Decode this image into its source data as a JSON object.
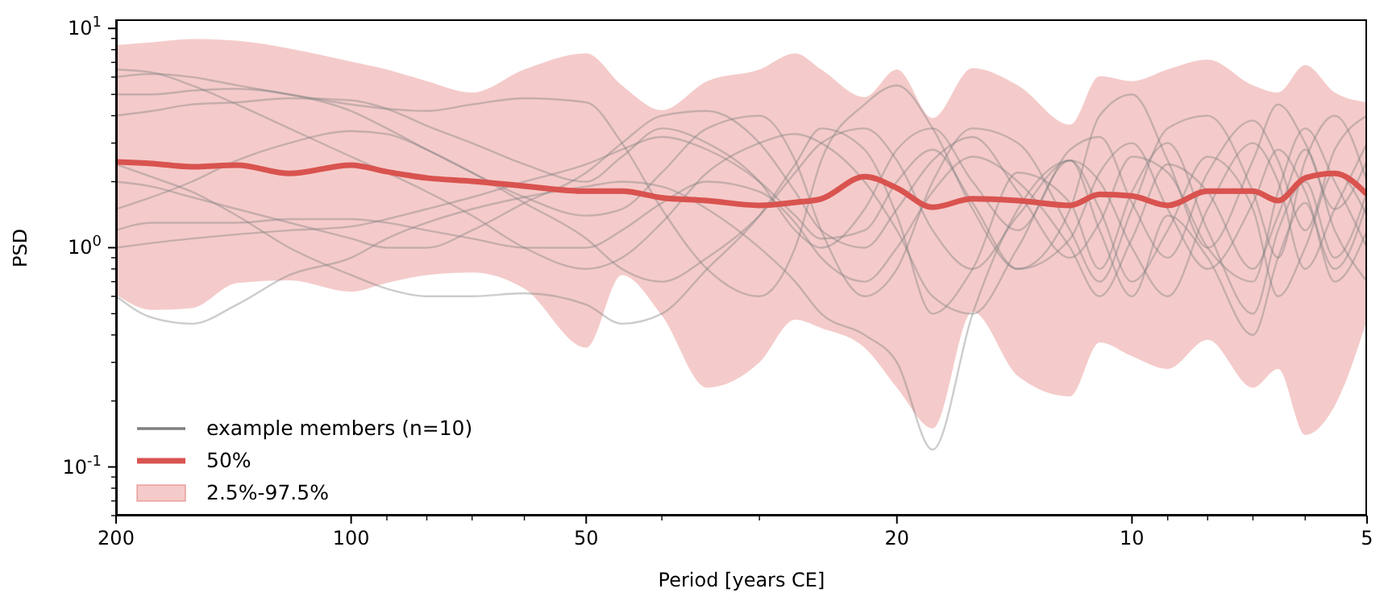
{
  "chart_data": {
    "type": "line",
    "xlabel": "Period [years CE]",
    "ylabel": "PSD",
    "log": "xy",
    "annotations": [
      "2.5%-97.5%"
    ],
    "legend": "bottom left",
    "marker": "none",
    "line_style": "solid",
    "xlim": [
      200,
      5
    ],
    "ylim": [
      0.06,
      11
    ],
    "xticks": [
      200,
      100,
      50,
      20,
      10,
      5,
      {
        "value": 90,
        "label": null
      },
      {
        "value": 80,
        "label": null
      },
      {
        "value": 70,
        "label": null
      },
      {
        "value": 60,
        "label": null
      },
      {
        "value": 40,
        "label": null
      },
      {
        "value": 30,
        "label": null
      },
      {
        "value": 9,
        "label": null
      },
      {
        "value": 8,
        "label": null
      },
      {
        "value": 7,
        "label": null
      },
      {
        "value": 6,
        "label": null
      }
    ],
    "yticks": [
      {
        "value": 0.1,
        "label": "10$^{-1}$"
      },
      {
        "value": 1,
        "label": "10$^{0}$"
      },
      {
        "value": 10,
        "label": "10$^{1}$"
      },
      {
        "value": 0.06,
        "label": null
      },
      {
        "value": 0.07,
        "label": null
      },
      {
        "value": 0.08,
        "label": null
      },
      {
        "value": 0.09,
        "label": null
      },
      {
        "value": 0.2,
        "label": null
      },
      {
        "value": 0.3,
        "label": null
      },
      {
        "value": 0.4,
        "label": null
      },
      {
        "value": 0.5,
        "label": null
      },
      {
        "value": 0.6,
        "label": null
      },
      {
        "value": 0.7,
        "label": null
      },
      {
        "value": 0.8,
        "label": null
      },
      {
        "value": 0.9,
        "label": null
      },
      {
        "value": 2,
        "label": null
      },
      {
        "value": 3,
        "label": null
      },
      {
        "value": 4,
        "label": null
      },
      {
        "value": 5,
        "label": null
      },
      {
        "value": 6,
        "label": null
      },
      {
        "value": 7,
        "label": null
      },
      {
        "value": 8,
        "label": null
      },
      {
        "value": 9,
        "label": null
      }
    ],
    "x": [
      200,
      180,
      160,
      140,
      120,
      100,
      90,
      80,
      70,
      60,
      50,
      45,
      40,
      35,
      30,
      27,
      25,
      22,
      20,
      18,
      16,
      14,
      12,
      11,
      10,
      9,
      8,
      7,
      6.5,
      6,
      5.5,
      5
    ],
    "series": [
      {
        "name": "example members (n=10)",
        "color": "#808080",
        "values": [
          6.5,
          6.3,
          5.5,
          4.5,
          3.5,
          2.6,
          2.2,
          1.8,
          1.4,
          1.0,
          0.8,
          0.9,
          1.3,
          2.2,
          3.0,
          3.3,
          3.0,
          2.0,
          1.2,
          0.6,
          0.5,
          1.0,
          2.5,
          2.0,
          1.0,
          0.6,
          1.5,
          3.0,
          2.0,
          0.8,
          1.5,
          3.0
        ]
      },
      {
        "color": "#808080",
        "values": [
          6.0,
          6.2,
          6.0,
          5.5,
          5.0,
          4.5,
          4.3,
          4.2,
          4.5,
          4.8,
          4.6,
          3.0,
          1.5,
          0.8,
          0.6,
          1.0,
          2.5,
          4.5,
          5.5,
          3.5,
          1.5,
          0.8,
          1.5,
          4.0,
          5.0,
          2.5,
          1.0,
          2.5,
          4.5,
          3.0,
          1.5,
          2.5
        ]
      },
      {
        "color": "#808080",
        "values": [
          5.0,
          5.0,
          5.2,
          5.3,
          5.0,
          4.2,
          3.5,
          2.8,
          2.2,
          1.7,
          1.4,
          1.5,
          2.2,
          3.5,
          4.0,
          2.5,
          1.2,
          0.6,
          0.8,
          2.0,
          3.5,
          3.0,
          1.2,
          0.7,
          1.5,
          3.5,
          4.0,
          1.8,
          0.9,
          2.5,
          4.0,
          2.0
        ]
      },
      {
        "color": "#808080",
        "values": [
          4.0,
          4.2,
          4.5,
          4.6,
          4.8,
          4.7,
          4.3,
          3.6,
          3.0,
          2.4,
          2.0,
          2.6,
          3.5,
          3.0,
          2.0,
          1.2,
          1.0,
          1.5,
          2.8,
          3.5,
          2.0,
          1.2,
          2.8,
          3.2,
          1.6,
          0.9,
          2.2,
          3.8,
          2.5,
          1.2,
          2.8,
          4.0
        ]
      },
      {
        "color": "#808080",
        "values": [
          2.0,
          1.9,
          1.7,
          1.5,
          1.3,
          1.1,
          1.0,
          1.0,
          1.2,
          1.6,
          2.2,
          3.0,
          4.0,
          4.2,
          3.0,
          1.8,
          1.2,
          1.0,
          1.5,
          2.5,
          3.2,
          1.8,
          0.9,
          1.3,
          2.6,
          2.2,
          1.0,
          0.7,
          1.8,
          3.5,
          2.0,
          1.0
        ]
      },
      {
        "color": "#808080",
        "values": [
          1.5,
          1.7,
          2.0,
          2.5,
          3.0,
          3.4,
          3.3,
          2.8,
          2.2,
          1.6,
          1.1,
          0.8,
          0.7,
          0.9,
          1.4,
          2.2,
          3.0,
          3.5,
          2.5,
          1.2,
          0.8,
          1.4,
          2.5,
          1.5,
          0.7,
          1.2,
          2.6,
          1.5,
          0.6,
          1.0,
          2.2,
          1.4
        ]
      },
      {
        "color": "#808080",
        "values": [
          1.2,
          1.3,
          1.3,
          1.3,
          1.35,
          1.35,
          1.3,
          1.2,
          1.1,
          1.0,
          1.0,
          1.2,
          1.6,
          2.0,
          1.8,
          1.3,
          0.9,
          0.7,
          1.0,
          1.8,
          2.6,
          2.0,
          1.0,
          0.6,
          1.1,
          2.4,
          1.8,
          0.8,
          1.4,
          2.8,
          1.2,
          0.7
        ]
      },
      {
        "color": "#808080",
        "values": [
          1.0,
          1.05,
          1.1,
          1.15,
          1.2,
          1.25,
          1.35,
          1.5,
          1.7,
          2.0,
          2.4,
          2.8,
          3.2,
          2.8,
          2.0,
          1.4,
          1.1,
          1.2,
          2.0,
          2.8,
          1.6,
          0.8,
          1.1,
          2.2,
          3.0,
          1.5,
          0.8,
          1.6,
          2.8,
          1.8,
          0.8,
          1.6
        ]
      },
      {
        "color": "#808080",
        "values": [
          2.4,
          2.1,
          1.8,
          1.4,
          1.0,
          0.75,
          0.65,
          0.6,
          0.6,
          0.62,
          0.55,
          0.45,
          0.5,
          0.8,
          1.4,
          2.4,
          3.5,
          2.8,
          1.4,
          0.5,
          0.8,
          2.2,
          1.6,
          0.8,
          1.8,
          3.0,
          1.2,
          0.5,
          1.2,
          2.0,
          0.9,
          1.8
        ]
      },
      {
        "color": "#808080",
        "values": [
          0.6,
          0.48,
          0.45,
          0.55,
          0.75,
          0.9,
          1.1,
          1.3,
          1.5,
          1.7,
          1.9,
          2.0,
          1.9,
          1.5,
          1.0,
          0.7,
          0.5,
          0.4,
          0.3,
          0.12,
          0.5,
          1.5,
          2.5,
          1.2,
          0.6,
          1.4,
          0.9,
          0.4,
          0.9,
          1.6,
          0.7,
          1.2
        ]
      },
      {
        "name": "50%",
        "color": "#d9534f",
        "values": [
          2.46,
          2.42,
          2.34,
          2.38,
          2.18,
          2.38,
          2.22,
          2.08,
          2.01,
          1.91,
          1.81,
          1.81,
          1.69,
          1.64,
          1.56,
          1.61,
          1.67,
          2.11,
          1.87,
          1.53,
          1.67,
          1.64,
          1.56,
          1.75,
          1.72,
          1.56,
          1.81,
          1.81,
          1.64,
          2.08,
          2.18,
          1.75
        ],
        "lower": [
          0.61,
          0.52,
          0.53,
          0.69,
          0.71,
          0.63,
          0.69,
          0.75,
          0.77,
          0.65,
          0.35,
          0.75,
          0.49,
          0.23,
          0.3,
          0.47,
          0.43,
          0.35,
          0.23,
          0.15,
          0.51,
          0.26,
          0.21,
          0.37,
          0.32,
          0.28,
          0.38,
          0.23,
          0.28,
          0.14,
          0.19,
          0.47
        ],
        "upper": [
          8.4,
          8.65,
          8.95,
          8.8,
          8.1,
          7.06,
          6.5,
          5.75,
          5.1,
          6.5,
          7.7,
          5.5,
          4.24,
          5.75,
          6.5,
          7.7,
          6.5,
          4.86,
          6.5,
          3.9,
          6.6,
          5.5,
          3.64,
          6.06,
          5.75,
          6.5,
          7.2,
          5.5,
          5.1,
          6.8,
          5.1,
          4.6
        ]
      }
    ]
  }
}
